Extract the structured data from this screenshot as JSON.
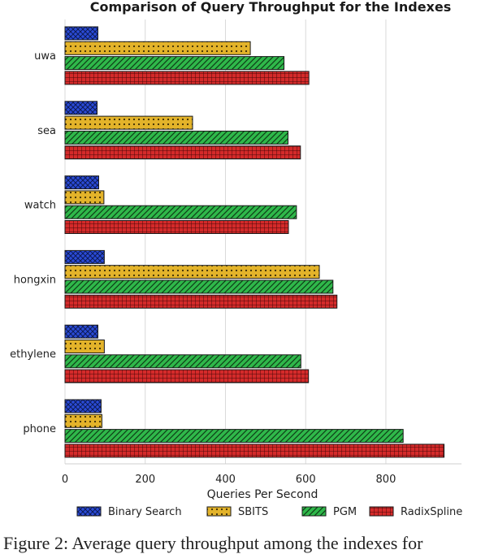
{
  "chart_data": {
    "type": "bar",
    "orientation": "horizontal",
    "title": "Comparison of Query Throughput for the Indexes",
    "xlabel": "Queries Per Second",
    "ylabel": "",
    "xlim": [
      0,
      980
    ],
    "xticks": [
      0,
      200,
      400,
      600,
      800
    ],
    "grid": "vertical",
    "legend_position": "bottom",
    "categories": [
      "uwa",
      "sea",
      "watch",
      "hongxin",
      "ethylene",
      "phone"
    ],
    "series": [
      {
        "name": "Binary Search",
        "color": "#2a4bd7",
        "pattern": "crosshatch",
        "values": [
          82,
          80,
          84,
          98,
          82,
          90
        ]
      },
      {
        "name": "SBITS",
        "color": "#e3b32a",
        "pattern": "dots",
        "values": [
          462,
          318,
          97,
          634,
          98,
          92
        ]
      },
      {
        "name": "PGM",
        "color": "#2fb84a",
        "pattern": "diagonal",
        "values": [
          546,
          556,
          577,
          668,
          588,
          843
        ]
      },
      {
        "name": "RadixSpline",
        "color": "#d42a2a",
        "pattern": "grid",
        "values": [
          608,
          587,
          557,
          678,
          607,
          945
        ]
      }
    ]
  },
  "caption": "Figure 2: Average query throughput among the indexes for"
}
